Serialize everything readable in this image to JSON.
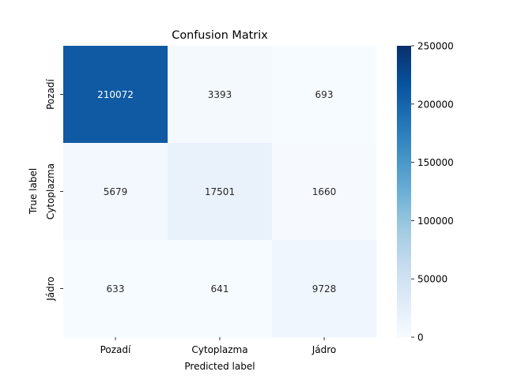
{
  "chart_data": {
    "type": "heatmap",
    "title": "Confusion Matrix",
    "xlabel": "Predicted label",
    "ylabel": "True label",
    "x_categories": [
      "Pozadí",
      "Cytoplazma",
      "Jádro"
    ],
    "y_categories": [
      "Pozadí",
      "Cytoplazma",
      "Jádro"
    ],
    "values": [
      [
        210072,
        3393,
        693
      ],
      [
        5679,
        17501,
        1660
      ],
      [
        633,
        641,
        9728
      ]
    ],
    "colorbar": {
      "min": 0,
      "max": 250000,
      "ticks": [
        0,
        50000,
        100000,
        150000,
        200000,
        250000
      ],
      "colormap": "Blues"
    },
    "grid": false,
    "legend": "colorbar-right"
  }
}
